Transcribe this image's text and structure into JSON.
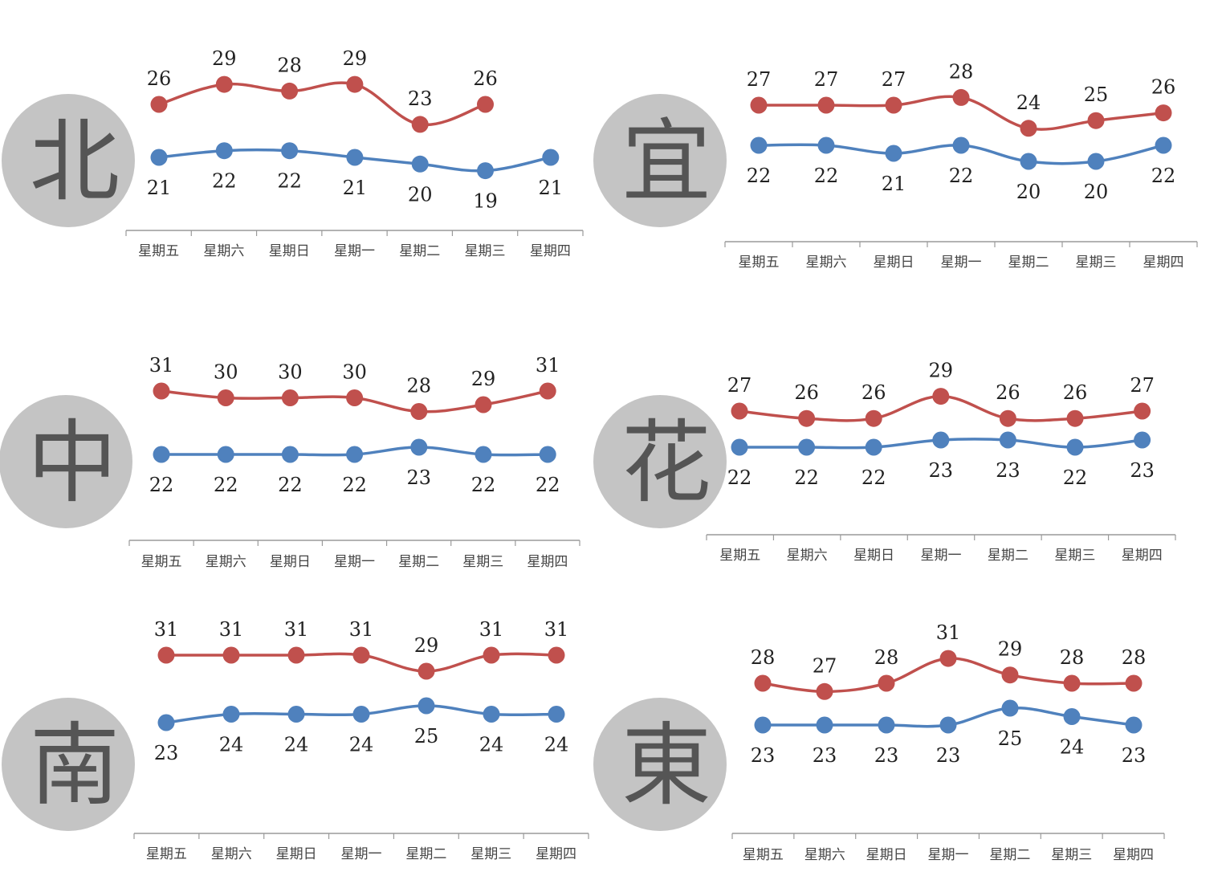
{
  "colors": {
    "high": "#c0504d",
    "low": "#4f81bd",
    "badge": "#c4c4c4",
    "badge_text": "#555555",
    "axis": "#9a9a9a"
  },
  "chart_data": [
    {
      "type": "line",
      "city": "北",
      "categories": [
        "星期五",
        "星期六",
        "星期日",
        "星期一",
        "星期二",
        "星期三",
        "星期四"
      ],
      "series": [
        {
          "values": [
            26,
            29,
            28,
            29,
            23,
            26,
            null
          ]
        },
        {
          "values": [
            21,
            22,
            22,
            21,
            20,
            19,
            21
          ]
        }
      ]
    },
    {
      "type": "line",
      "city": "宜",
      "categories": [
        "星期五",
        "星期六",
        "星期日",
        "星期一",
        "星期二",
        "星期三",
        "星期四"
      ],
      "series": [
        {
          "values": [
            27,
            27,
            27,
            28,
            24,
            25,
            26
          ]
        },
        {
          "values": [
            22,
            22,
            21,
            22,
            20,
            20,
            22
          ]
        }
      ]
    },
    {
      "type": "line",
      "city": "中",
      "categories": [
        "星期五",
        "星期六",
        "星期日",
        "星期一",
        "星期二",
        "星期三",
        "星期四"
      ],
      "series": [
        {
          "values": [
            31,
            30,
            30,
            30,
            28,
            29,
            31
          ]
        },
        {
          "values": [
            22,
            22,
            22,
            22,
            23,
            22,
            22
          ]
        }
      ]
    },
    {
      "type": "line",
      "city": "花",
      "categories": [
        "星期五",
        "星期六",
        "星期日",
        "星期一",
        "星期二",
        "星期三",
        "星期四"
      ],
      "series": [
        {
          "values": [
            27,
            26,
            26,
            29,
            26,
            26,
            27
          ]
        },
        {
          "values": [
            22,
            22,
            22,
            23,
            23,
            22,
            23
          ]
        }
      ]
    },
    {
      "type": "line",
      "city": "南",
      "categories": [
        "星期五",
        "星期六",
        "星期日",
        "星期一",
        "星期二",
        "星期三",
        "星期四"
      ],
      "series": [
        {
          "values": [
            31,
            31,
            31,
            31,
            29,
            31,
            31
          ]
        },
        {
          "values": [
            23,
            24,
            24,
            24,
            25,
            24,
            24
          ]
        }
      ]
    },
    {
      "type": "line",
      "city": "東",
      "categories": [
        "星期五",
        "星期六",
        "星期日",
        "星期一",
        "星期二",
        "星期三",
        "星期四"
      ],
      "series": [
        {
          "values": [
            28,
            27,
            28,
            31,
            29,
            28,
            28
          ]
        },
        {
          "values": [
            23,
            23,
            23,
            23,
            25,
            24,
            23
          ]
        }
      ]
    }
  ]
}
